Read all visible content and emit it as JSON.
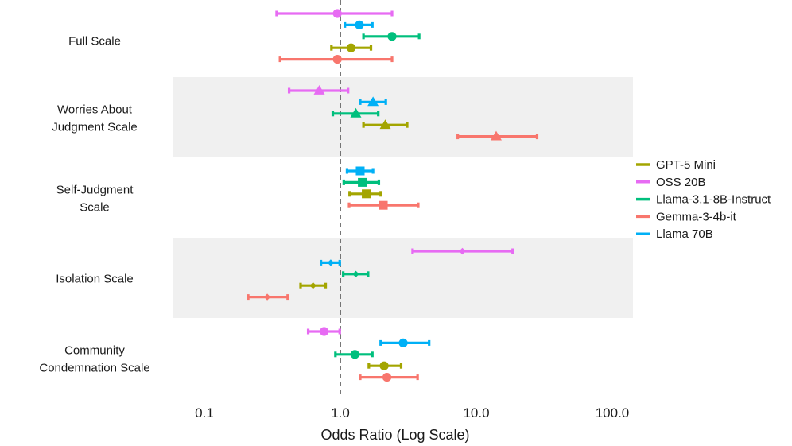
{
  "chart_data": {
    "type": "forest",
    "title": "",
    "xlabel": "Odds Ratio (Log Scale)",
    "ylabel": "",
    "x_scale": "log10",
    "xlim": [
      0.06,
      140
    ],
    "x_ticks": [
      0.1,
      1,
      10,
      100
    ],
    "x_tick_labels": [
      "0.1",
      "1.0",
      "10.0",
      "100.0"
    ],
    "reference_line": 1,
    "groups": [
      {
        "label_lines": [
          "Full Scale"
        ],
        "shaded": false,
        "marker": "circle"
      },
      {
        "label_lines": [
          "Worries About",
          "Judgment Scale"
        ],
        "shaded": true,
        "marker": "triangle"
      },
      {
        "label_lines": [
          "Self-Judgment",
          "Scale"
        ],
        "shaded": false,
        "marker": "square"
      },
      {
        "label_lines": [
          "Isolation Scale"
        ],
        "shaded": true,
        "marker": "diamond"
      },
      {
        "label_lines": [
          "Community",
          "Condemnation Scale"
        ],
        "shaded": false,
        "marker": "circle"
      }
    ],
    "series": [
      {
        "name": "GPT-5 Mini",
        "color": "#A3A500"
      },
      {
        "name": "OSS 20B",
        "color": "#E76BF3"
      },
      {
        "name": "Llama-3.1-8B-Instruct",
        "color": "#00BF7D"
      },
      {
        "name": "Gemma-3-4b-it",
        "color": "#F8766D"
      },
      {
        "name": "Llama 70B",
        "color": "#00B0F6"
      }
    ],
    "points": [
      {
        "group": 0,
        "model": "OSS 20B",
        "or": 0.95,
        "lo": 0.34,
        "hi": 2.4
      },
      {
        "group": 0,
        "model": "Llama 70B",
        "or": 1.38,
        "lo": 1.08,
        "hi": 1.72
      },
      {
        "group": 0,
        "model": "Llama-3.1-8B-Instruct",
        "or": 2.4,
        "lo": 1.48,
        "hi": 3.8
      },
      {
        "group": 0,
        "model": "GPT-5 Mini",
        "or": 1.2,
        "lo": 0.86,
        "hi": 1.68
      },
      {
        "group": 0,
        "model": "Gemma-3-4b-it",
        "or": 0.95,
        "lo": 0.36,
        "hi": 2.4
      },
      {
        "group": 1,
        "model": "OSS 20B",
        "or": 0.7,
        "lo": 0.42,
        "hi": 1.14
      },
      {
        "group": 1,
        "model": "Llama 70B",
        "or": 1.74,
        "lo": 1.4,
        "hi": 2.16
      },
      {
        "group": 1,
        "model": "Llama-3.1-8B-Instruct",
        "or": 1.3,
        "lo": 0.88,
        "hi": 1.9
      },
      {
        "group": 1,
        "model": "GPT-5 Mini",
        "or": 2.14,
        "lo": 1.48,
        "hi": 3.1
      },
      {
        "group": 1,
        "model": "Gemma-3-4b-it",
        "or": 14.0,
        "lo": 7.3,
        "hi": 28.0
      },
      {
        "group": 2,
        "model": "Llama 70B",
        "or": 1.4,
        "lo": 1.12,
        "hi": 1.74
      },
      {
        "group": 2,
        "model": "Llama-3.1-8B-Instruct",
        "or": 1.45,
        "lo": 1.06,
        "hi": 1.92
      },
      {
        "group": 2,
        "model": "GPT-5 Mini",
        "or": 1.55,
        "lo": 1.17,
        "hi": 1.98
      },
      {
        "group": 2,
        "model": "Gemma-3-4b-it",
        "or": 2.07,
        "lo": 1.16,
        "hi": 3.74
      },
      {
        "group": 3,
        "model": "OSS 20B",
        "or": 7.9,
        "lo": 3.4,
        "hi": 18.5
      },
      {
        "group": 3,
        "model": "Llama 70B",
        "or": 0.85,
        "lo": 0.72,
        "hi": 0.99
      },
      {
        "group": 3,
        "model": "Llama-3.1-8B-Instruct",
        "or": 1.3,
        "lo": 1.05,
        "hi": 1.6
      },
      {
        "group": 3,
        "model": "GPT-5 Mini",
        "or": 0.63,
        "lo": 0.51,
        "hi": 0.78
      },
      {
        "group": 3,
        "model": "Gemma-3-4b-it",
        "or": 0.29,
        "lo": 0.21,
        "hi": 0.41
      },
      {
        "group": 4,
        "model": "OSS 20B",
        "or": 0.76,
        "lo": 0.58,
        "hi": 0.99
      },
      {
        "group": 4,
        "model": "Llama 70B",
        "or": 2.9,
        "lo": 1.98,
        "hi": 4.5
      },
      {
        "group": 4,
        "model": "Llama-3.1-8B-Instruct",
        "or": 1.28,
        "lo": 0.92,
        "hi": 1.72
      },
      {
        "group": 4,
        "model": "GPT-5 Mini",
        "or": 2.1,
        "lo": 1.62,
        "hi": 2.8
      },
      {
        "group": 4,
        "model": "Gemma-3-4b-it",
        "or": 2.2,
        "lo": 1.4,
        "hi": 3.7
      }
    ]
  }
}
